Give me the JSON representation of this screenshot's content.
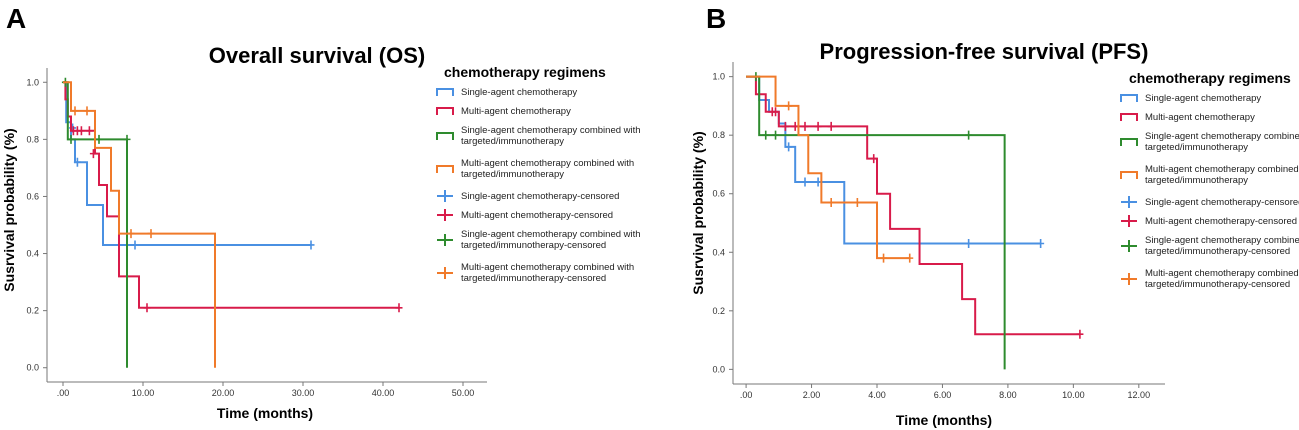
{
  "colors": {
    "single": "#4a90e2",
    "multi": "#d81b4a",
    "single_combined": "#2e8b2e",
    "multi_combined": "#f07a2a",
    "axis": "#777777"
  },
  "chart_data": [
    {
      "type": "line",
      "subtype": "kaplan-meier",
      "panel_letter": "A",
      "title": "Overall survival (OS)",
      "xlabel": "Time (months)",
      "ylabel": "Susrvival probability (%)",
      "xlim": [
        -2,
        53
      ],
      "ylim": [
        -0.05,
        1.05
      ],
      "xticks": [
        0,
        10,
        20,
        30,
        40,
        50
      ],
      "xtick_labels": [
        ".00",
        "10.00",
        "20.00",
        "30.00",
        "40.00",
        "50.00"
      ],
      "yticks": [
        0,
        0.2,
        0.4,
        0.6,
        0.8,
        1.0
      ],
      "ytick_labels": [
        "0.0",
        "0.2",
        "0.4",
        "0.6",
        "0.8",
        "1.0"
      ],
      "legend_title": "chemotherapy regimens",
      "series": [
        {
          "key": "single",
          "name": "Single-agent chemotherapy",
          "censored_name": "Single-agent chemotherapy-censored",
          "steps": [
            [
              0,
              1.0
            ],
            [
              0.4,
              0.86
            ],
            [
              1.0,
              0.8
            ],
            [
              1.5,
              0.72
            ],
            [
              3.0,
              0.57
            ],
            [
              5.0,
              0.43
            ],
            [
              31.0,
              0.43
            ]
          ],
          "censors": [
            [
              1.2,
              0.84
            ],
            [
              1.8,
              0.72
            ],
            [
              7.0,
              0.43
            ],
            [
              9.0,
              0.43
            ],
            [
              31.0,
              0.43
            ]
          ]
        },
        {
          "key": "multi",
          "name": "Multi-agent chemotherapy",
          "censored_name": "Multi-agent chemotherapy-censored",
          "steps": [
            [
              0,
              1.0
            ],
            [
              0.3,
              0.94
            ],
            [
              0.6,
              0.88
            ],
            [
              1.0,
              0.83
            ],
            [
              4.0,
              0.75
            ],
            [
              4.5,
              0.64
            ],
            [
              5.5,
              0.53
            ],
            [
              7.0,
              0.32
            ],
            [
              9.5,
              0.21
            ],
            [
              42.0,
              0.21
            ]
          ],
          "censors": [
            [
              1.3,
              0.83
            ],
            [
              1.8,
              0.83
            ],
            [
              2.3,
              0.83
            ],
            [
              3.3,
              0.83
            ],
            [
              3.8,
              0.75
            ],
            [
              10.5,
              0.21
            ],
            [
              42.0,
              0.21
            ]
          ]
        },
        {
          "key": "single_combined",
          "name": "Single-agent chemotherapy combined with targeted/immunotherapy",
          "censored_name": "Single-agent chemotherapy combined with targeted/immunotherapy-censored",
          "steps": [
            [
              0,
              1.0
            ],
            [
              0.6,
              0.8
            ],
            [
              8.0,
              0.8
            ],
            [
              8.0,
              0.0
            ]
          ],
          "censors": [
            [
              0.3,
              1.0
            ],
            [
              1.0,
              0.8
            ],
            [
              4.5,
              0.8
            ],
            [
              8.0,
              0.8
            ]
          ]
        },
        {
          "key": "multi_combined",
          "name": "Multi-agent chemotherapy combined with targeted/immunotherapy",
          "censored_name": "Multi-agent chemotherapy combined with targeted/immunotherapy-censored",
          "steps": [
            [
              0,
              1.0
            ],
            [
              1.0,
              0.9
            ],
            [
              4.0,
              0.77
            ],
            [
              6.0,
              0.62
            ],
            [
              7.0,
              0.47
            ],
            [
              19.0,
              0.47
            ],
            [
              19.0,
              0.0
            ]
          ],
          "censors": [
            [
              1.5,
              0.9
            ],
            [
              3.0,
              0.9
            ],
            [
              8.5,
              0.47
            ],
            [
              11.0,
              0.47
            ]
          ]
        }
      ]
    },
    {
      "type": "line",
      "subtype": "kaplan-meier",
      "panel_letter": "B",
      "title": "Progression-free survival (PFS)",
      "xlabel": "Time (months)",
      "ylabel": "Susrvival probability (%)",
      "xlim": [
        -0.4,
        12.8
      ],
      "ylim": [
        -0.05,
        1.05
      ],
      "xticks": [
        0,
        2,
        4,
        6,
        8,
        10,
        12
      ],
      "xtick_labels": [
        ".00",
        "2.00",
        "4.00",
        "6.00",
        "8.00",
        "10.00",
        "12.00"
      ],
      "yticks": [
        0,
        0.2,
        0.4,
        0.6,
        0.8,
        1.0
      ],
      "ytick_labels": [
        "0.0",
        "0.2",
        "0.4",
        "0.6",
        "0.8",
        "1.0"
      ],
      "legend_title": "chemotherapy regimens",
      "series": [
        {
          "key": "single",
          "name": "Single-agent chemotherapy",
          "censored_name": "Single-agent chemotherapy-censored",
          "steps": [
            [
              0,
              1.0
            ],
            [
              0.4,
              0.92
            ],
            [
              0.7,
              0.88
            ],
            [
              1.0,
              0.84
            ],
            [
              1.2,
              0.76
            ],
            [
              1.5,
              0.64
            ],
            [
              3.0,
              0.43
            ],
            [
              9.0,
              0.43
            ]
          ],
          "censors": [
            [
              1.3,
              0.76
            ],
            [
              1.8,
              0.64
            ],
            [
              2.2,
              0.64
            ],
            [
              6.8,
              0.43
            ],
            [
              9.0,
              0.43
            ]
          ]
        },
        {
          "key": "multi",
          "name": "Multi-agent chemotherapy",
          "censored_name": "Multi-agent chemotherapy-censored",
          "steps": [
            [
              0,
              1.0
            ],
            [
              0.3,
              0.94
            ],
            [
              0.6,
              0.88
            ],
            [
              1.0,
              0.83
            ],
            [
              3.7,
              0.72
            ],
            [
              4.0,
              0.6
            ],
            [
              4.4,
              0.48
            ],
            [
              5.3,
              0.36
            ],
            [
              6.6,
              0.24
            ],
            [
              7.0,
              0.12
            ],
            [
              10.2,
              0.12
            ]
          ],
          "censors": [
            [
              0.8,
              0.88
            ],
            [
              0.9,
              0.88
            ],
            [
              1.2,
              0.83
            ],
            [
              1.5,
              0.83
            ],
            [
              1.8,
              0.83
            ],
            [
              2.2,
              0.83
            ],
            [
              2.6,
              0.83
            ],
            [
              3.9,
              0.72
            ],
            [
              10.2,
              0.12
            ]
          ]
        },
        {
          "key": "single_combined",
          "name": "Single-agent chemotherapy combined with targeted/immunotherapy",
          "censored_name": "Single-agent chemotherapy combined with targeted/immunotherapy-censored",
          "steps": [
            [
              0,
              1.0
            ],
            [
              0.4,
              0.8
            ],
            [
              7.9,
              0.8
            ],
            [
              7.9,
              0.0
            ]
          ],
          "censors": [
            [
              0.3,
              1.0
            ],
            [
              0.6,
              0.8
            ],
            [
              0.9,
              0.8
            ],
            [
              6.8,
              0.8
            ]
          ]
        },
        {
          "key": "multi_combined",
          "name": "Multi-agent chemotherapy combined with targeted/immunotherapy",
          "censored_name": "Multi-agent chemotherapy combined with targeted/immunotherapy-censored",
          "steps": [
            [
              0,
              1.0
            ],
            [
              0.9,
              0.9
            ],
            [
              1.6,
              0.8
            ],
            [
              1.9,
              0.67
            ],
            [
              2.3,
              0.57
            ],
            [
              4.0,
              0.38
            ],
            [
              5.0,
              0.38
            ]
          ],
          "censors": [
            [
              1.3,
              0.9
            ],
            [
              2.6,
              0.57
            ],
            [
              3.4,
              0.57
            ],
            [
              4.2,
              0.38
            ],
            [
              5.0,
              0.38
            ]
          ]
        }
      ]
    }
  ]
}
